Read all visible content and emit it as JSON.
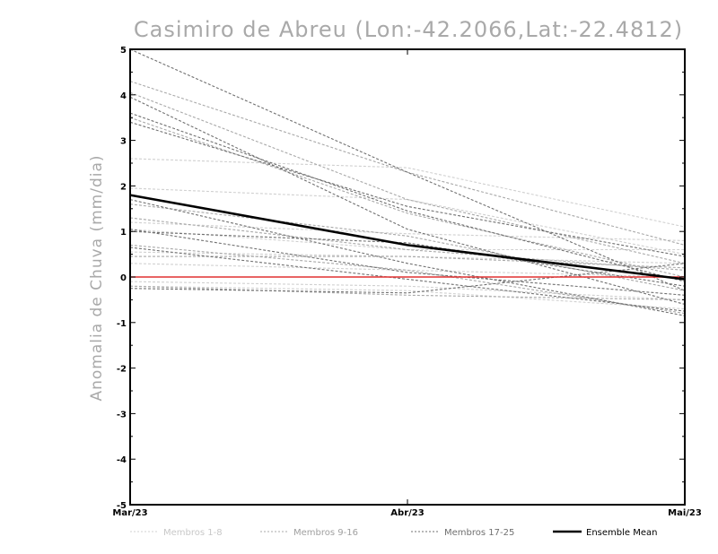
{
  "chart_data": {
    "type": "line",
    "title": "Casimiro de Abreu (Lon:-42.2066,Lat:-22.4812)",
    "xlabel": "",
    "ylabel": "Anomalia de Chuva (mm/dia)",
    "categories": [
      "Mar/23",
      "Abr/23",
      "Mai/23"
    ],
    "yticks": [
      "5",
      "4",
      "3",
      "2",
      "1",
      "0",
      "-1",
      "-2",
      "-3",
      "-4",
      "-5"
    ],
    "ylim": [
      -5,
      5
    ],
    "grid": false,
    "legend_position": "bottom",
    "legend": [
      {
        "label": "Membros 1-8",
        "color": "#d0d0d0",
        "style": "dashed"
      },
      {
        "label": "Membros 9-16",
        "color": "#a8a8a8",
        "style": "dashed"
      },
      {
        "label": "Membros 17-25",
        "color": "#707070",
        "style": "dashed"
      },
      {
        "label": "Ensemble Mean",
        "color": "#000000",
        "style": "solid"
      }
    ],
    "series": [
      {
        "group": 1,
        "values": [
          2.6,
          2.4,
          1.1
        ]
      },
      {
        "group": 1,
        "values": [
          1.95,
          1.7,
          0.5
        ]
      },
      {
        "group": 1,
        "values": [
          1.2,
          0.95,
          0.8
        ]
      },
      {
        "group": 1,
        "values": [
          0.55,
          0.45,
          0.3
        ]
      },
      {
        "group": 1,
        "values": [
          0.3,
          0.15,
          0.0
        ]
      },
      {
        "group": 1,
        "values": [
          -0.1,
          -0.2,
          -0.5
        ]
      },
      {
        "group": 1,
        "values": [
          1.05,
          0.6,
          0.6
        ]
      },
      {
        "group": 1,
        "values": [
          -0.2,
          -0.3,
          -0.7
        ]
      },
      {
        "group": 2,
        "values": [
          4.3,
          2.3,
          0.7
        ]
      },
      {
        "group": 2,
        "values": [
          4.05,
          1.7,
          0.3
        ]
      },
      {
        "group": 2,
        "values": [
          3.5,
          1.4,
          0.0
        ]
      },
      {
        "group": 2,
        "values": [
          1.6,
          0.9,
          -0.3
        ]
      },
      {
        "group": 2,
        "values": [
          1.3,
          0.6,
          0.15
        ]
      },
      {
        "group": 2,
        "values": [
          0.45,
          0.45,
          0.2
        ]
      },
      {
        "group": 2,
        "values": [
          -0.2,
          -0.4,
          -0.5
        ]
      },
      {
        "group": 2,
        "values": [
          0.7,
          0.15,
          -0.8
        ]
      },
      {
        "group": 3,
        "values": [
          5.0,
          2.3,
          -0.3
        ]
      },
      {
        "group": 3,
        "values": [
          3.95,
          1.05,
          -0.6
        ]
      },
      {
        "group": 3,
        "values": [
          3.6,
          1.45,
          -0.1
        ]
      },
      {
        "group": 3,
        "values": [
          1.05,
          0.1,
          -0.4
        ]
      },
      {
        "group": 3,
        "values": [
          1.7,
          0.3,
          -0.85
        ]
      },
      {
        "group": 3,
        "values": [
          0.65,
          -0.05,
          -0.75
        ]
      },
      {
        "group": 3,
        "values": [
          -0.25,
          -0.35,
          0.3
        ]
      },
      {
        "group": 3,
        "values": [
          1.0,
          0.75,
          -0.2
        ]
      },
      {
        "group": 3,
        "values": [
          3.4,
          1.55,
          0.45
        ]
      },
      {
        "group": "mean",
        "values": [
          1.8,
          0.7,
          -0.05
        ]
      },
      {
        "group": "zero",
        "values": [
          0.0,
          0.0,
          0.0
        ]
      }
    ]
  }
}
